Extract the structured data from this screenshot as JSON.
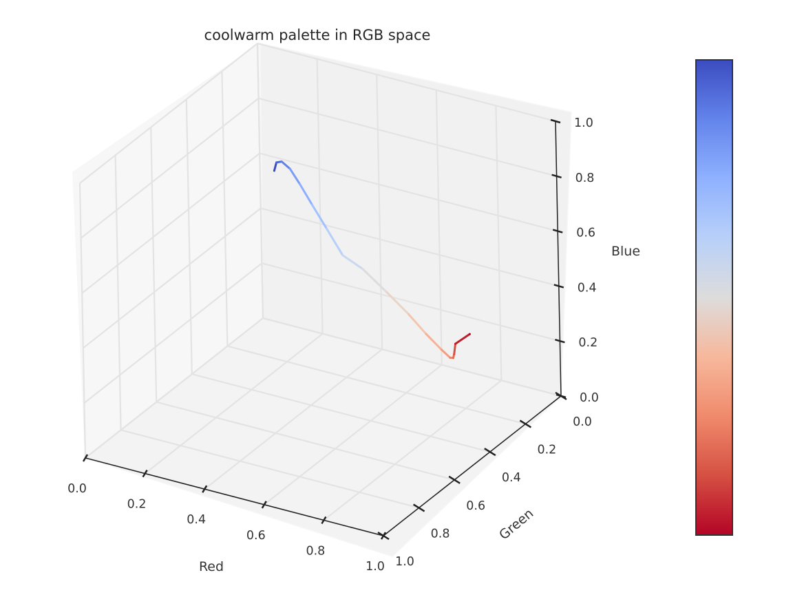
{
  "chart_data": {
    "type": "line",
    "title": "coolwarm palette in RGB space",
    "projection": "3d",
    "xlabel": "Red",
    "ylabel": "Green",
    "zlabel": "Blue",
    "xlim": [
      0,
      1
    ],
    "ylim": [
      0,
      1
    ],
    "zlim": [
      0,
      1
    ],
    "xticks": [
      "0.0",
      "0.2",
      "0.4",
      "0.6",
      "0.8",
      "1.0"
    ],
    "yticks": [
      "0.0",
      "0.2",
      "0.4",
      "0.6",
      "0.8",
      "1.0"
    ],
    "zticks": [
      "0.0",
      "0.2",
      "0.4",
      "0.6",
      "0.8",
      "1.0"
    ],
    "grid": true,
    "colormap": "coolwarm",
    "colorbar": true,
    "series": [
      {
        "points": [
          {
            "x": 0.23,
            "y": 0.299,
            "z": 0.754,
            "color": "#3b4cc0"
          },
          {
            "x": 0.303,
            "y": 0.406,
            "z": 0.859,
            "color": "#4d68d7"
          },
          {
            "x": 0.384,
            "y": 0.51,
            "z": 0.938,
            "color": "#6282ea"
          },
          {
            "x": 0.47,
            "y": 0.606,
            "z": 0.985,
            "color": "#7a9df8"
          },
          {
            "x": 0.553,
            "y": 0.69,
            "z": 0.996,
            "color": "#8db0fe"
          },
          {
            "x": 0.637,
            "y": 0.762,
            "z": 0.981,
            "color": "#a2c1ff"
          },
          {
            "x": 0.717,
            "y": 0.815,
            "z": 0.943,
            "color": "#b7cff9"
          },
          {
            "x": 0.789,
            "y": 0.848,
            "z": 0.884,
            "color": "#c9d7f0"
          },
          {
            "x": 0.865,
            "y": 0.865,
            "z": 0.865,
            "color": "#dddcdc"
          },
          {
            "x": 0.923,
            "y": 0.827,
            "z": 0.776,
            "color": "#ebd3c6"
          },
          {
            "x": 0.958,
            "y": 0.767,
            "z": 0.676,
            "color": "#f4c5ad"
          },
          {
            "x": 0.969,
            "y": 0.69,
            "z": 0.568,
            "color": "#f7b194"
          },
          {
            "x": 0.965,
            "y": 0.6,
            "z": 0.464,
            "color": "#f59c7d"
          },
          {
            "x": 0.934,
            "y": 0.502,
            "z": 0.376,
            "color": "#ee8468"
          },
          {
            "x": 0.88,
            "y": 0.396,
            "z": 0.306,
            "color": "#e36c55"
          },
          {
            "x": 0.814,
            "y": 0.282,
            "z": 0.243,
            "color": "#d55042"
          },
          {
            "x": 0.733,
            "y": 0.141,
            "z": 0.186,
            "color": "#bd1f2d"
          },
          {
            "x": 0.706,
            "y": 0.016,
            "z": 0.15,
            "color": "#b40426"
          }
        ]
      }
    ]
  }
}
